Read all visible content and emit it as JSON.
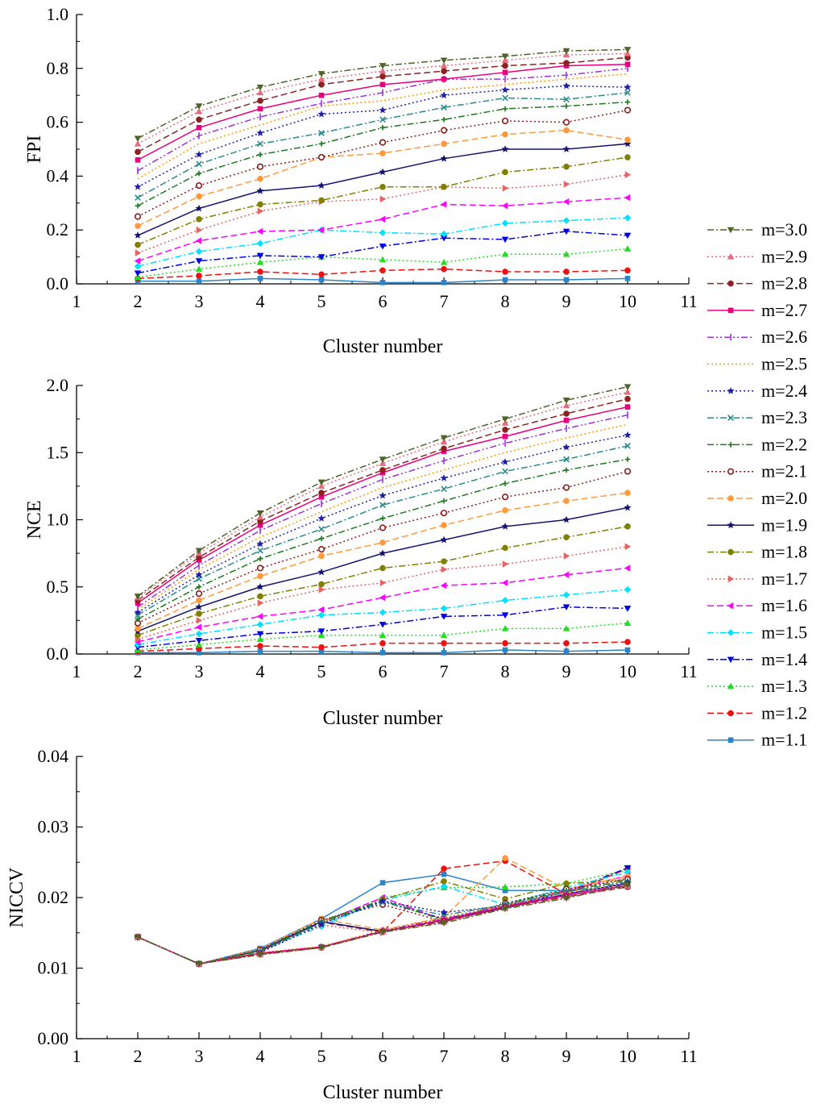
{
  "chart_data": [
    {
      "type": "line",
      "xlabel": "Cluster number",
      "ylabel": "FPI",
      "xlim": [
        1,
        11
      ],
      "ylim": [
        0.0,
        1.0
      ],
      "xticks": [
        "1",
        "2",
        "3",
        "4",
        "5",
        "6",
        "7",
        "8",
        "9",
        "10",
        "11"
      ],
      "yticks": [
        "0.0",
        "0.2",
        "0.4",
        "0.6",
        "0.8",
        "1.0"
      ],
      "x": [
        2,
        3,
        4,
        5,
        6,
        7,
        8,
        9,
        10
      ],
      "series": [
        {
          "name": "m=3.0",
          "values": [
            0.54,
            0.66,
            0.73,
            0.78,
            0.81,
            0.83,
            0.845,
            0.865,
            0.87
          ]
        },
        {
          "name": "m=2.9",
          "values": [
            0.52,
            0.64,
            0.71,
            0.76,
            0.79,
            0.81,
            0.83,
            0.85,
            0.855
          ]
        },
        {
          "name": "m=2.8",
          "values": [
            0.49,
            0.61,
            0.68,
            0.74,
            0.77,
            0.79,
            0.81,
            0.82,
            0.84
          ]
        },
        {
          "name": "m=2.7",
          "values": [
            0.46,
            0.58,
            0.65,
            0.7,
            0.74,
            0.76,
            0.785,
            0.81,
            0.815
          ]
        },
        {
          "name": "m=2.6",
          "values": [
            0.42,
            0.55,
            0.62,
            0.67,
            0.71,
            0.76,
            0.76,
            0.775,
            0.8
          ]
        },
        {
          "name": "m=2.5",
          "values": [
            0.39,
            0.52,
            0.59,
            0.66,
            0.68,
            0.72,
            0.74,
            0.76,
            0.78
          ]
        },
        {
          "name": "m=2.4",
          "values": [
            0.36,
            0.48,
            0.56,
            0.63,
            0.645,
            0.7,
            0.72,
            0.735,
            0.73
          ]
        },
        {
          "name": "m=2.3",
          "values": [
            0.32,
            0.445,
            0.52,
            0.56,
            0.61,
            0.655,
            0.69,
            0.685,
            0.71
          ]
        },
        {
          "name": "m=2.2",
          "values": [
            0.29,
            0.41,
            0.48,
            0.52,
            0.58,
            0.61,
            0.65,
            0.66,
            0.675
          ]
        },
        {
          "name": "m=2.1",
          "values": [
            0.25,
            0.365,
            0.435,
            0.47,
            0.525,
            0.57,
            0.605,
            0.6,
            0.645
          ]
        },
        {
          "name": "m=2.0",
          "values": [
            0.215,
            0.325,
            0.39,
            0.47,
            0.485,
            0.52,
            0.555,
            0.57,
            0.535
          ]
        },
        {
          "name": "m=1.9",
          "values": [
            0.18,
            0.28,
            0.345,
            0.365,
            0.415,
            0.465,
            0.5,
            0.5,
            0.52
          ]
        },
        {
          "name": "m=1.8",
          "values": [
            0.145,
            0.24,
            0.295,
            0.31,
            0.36,
            0.36,
            0.415,
            0.435,
            0.47
          ]
        },
        {
          "name": "m=1.7",
          "values": [
            0.115,
            0.2,
            0.27,
            0.305,
            0.315,
            0.36,
            0.355,
            0.37,
            0.405
          ]
        },
        {
          "name": "m=1.6",
          "values": [
            0.085,
            0.16,
            0.195,
            0.2,
            0.24,
            0.295,
            0.29,
            0.305,
            0.32
          ]
        },
        {
          "name": "m=1.5",
          "values": [
            0.065,
            0.12,
            0.15,
            0.2,
            0.19,
            0.185,
            0.225,
            0.235,
            0.245
          ]
        },
        {
          "name": "m=1.4",
          "values": [
            0.04,
            0.085,
            0.105,
            0.1,
            0.14,
            0.17,
            0.165,
            0.195,
            0.18
          ]
        },
        {
          "name": "m=1.3",
          "values": [
            0.025,
            0.055,
            0.08,
            0.1,
            0.09,
            0.08,
            0.11,
            0.11,
            0.13
          ]
        },
        {
          "name": "m=1.2",
          "values": [
            0.02,
            0.03,
            0.045,
            0.035,
            0.05,
            0.055,
            0.045,
            0.045,
            0.05
          ]
        },
        {
          "name": "m=1.1",
          "values": [
            0.01,
            0.01,
            0.02,
            0.015,
            0.005,
            0.005,
            0.015,
            0.015,
            0.02
          ]
        }
      ]
    },
    {
      "type": "line",
      "xlabel": "Cluster number",
      "ylabel": "NCE",
      "xlim": [
        1,
        11
      ],
      "ylim": [
        0.0,
        2.0
      ],
      "xticks": [
        "1",
        "2",
        "3",
        "4",
        "5",
        "6",
        "7",
        "8",
        "9",
        "10",
        "11"
      ],
      "yticks": [
        "0.0",
        "0.5",
        "1.0",
        "1.5",
        "2.0"
      ],
      "x": [
        2,
        3,
        4,
        5,
        6,
        7,
        8,
        9,
        10
      ],
      "series": [
        {
          "name": "m=3.0",
          "values": [
            0.43,
            0.77,
            1.05,
            1.28,
            1.45,
            1.61,
            1.75,
            1.89,
            1.99
          ]
        },
        {
          "name": "m=2.9",
          "values": [
            0.42,
            0.75,
            1.02,
            1.25,
            1.42,
            1.58,
            1.72,
            1.85,
            1.95
          ]
        },
        {
          "name": "m=2.8",
          "values": [
            0.4,
            0.72,
            0.99,
            1.2,
            1.37,
            1.53,
            1.67,
            1.79,
            1.9
          ]
        },
        {
          "name": "m=2.7",
          "values": [
            0.38,
            0.7,
            0.96,
            1.17,
            1.35,
            1.51,
            1.62,
            1.74,
            1.84
          ]
        },
        {
          "name": "m=2.6",
          "values": [
            0.35,
            0.66,
            0.92,
            1.12,
            1.3,
            1.44,
            1.57,
            1.68,
            1.78
          ]
        },
        {
          "name": "m=2.5",
          "values": [
            0.33,
            0.63,
            0.87,
            1.06,
            1.24,
            1.37,
            1.5,
            1.61,
            1.71
          ]
        },
        {
          "name": "m=2.4",
          "values": [
            0.31,
            0.59,
            0.82,
            1.01,
            1.18,
            1.31,
            1.43,
            1.54,
            1.63
          ]
        },
        {
          "name": "m=2.3",
          "values": [
            0.29,
            0.56,
            0.77,
            0.93,
            1.11,
            1.23,
            1.36,
            1.45,
            1.55
          ]
        },
        {
          "name": "m=2.2",
          "values": [
            0.26,
            0.5,
            0.71,
            0.86,
            1.01,
            1.14,
            1.27,
            1.37,
            1.45
          ]
        },
        {
          "name": "m=2.1",
          "values": [
            0.23,
            0.45,
            0.64,
            0.78,
            0.94,
            1.05,
            1.17,
            1.24,
            1.36
          ]
        },
        {
          "name": "m=2.0",
          "values": [
            0.19,
            0.4,
            0.58,
            0.73,
            0.83,
            0.96,
            1.07,
            1.14,
            1.2
          ]
        },
        {
          "name": "m=1.9",
          "values": [
            0.17,
            0.35,
            0.5,
            0.61,
            0.75,
            0.85,
            0.95,
            1.0,
            1.09
          ]
        },
        {
          "name": "m=1.8",
          "values": [
            0.14,
            0.3,
            0.43,
            0.52,
            0.64,
            0.69,
            0.79,
            0.87,
            0.95
          ]
        },
        {
          "name": "m=1.7",
          "values": [
            0.11,
            0.25,
            0.38,
            0.48,
            0.53,
            0.63,
            0.67,
            0.73,
            0.8
          ]
        },
        {
          "name": "m=1.6",
          "values": [
            0.09,
            0.2,
            0.28,
            0.33,
            0.42,
            0.51,
            0.53,
            0.59,
            0.64
          ]
        },
        {
          "name": "m=1.5",
          "values": [
            0.07,
            0.15,
            0.22,
            0.29,
            0.31,
            0.34,
            0.4,
            0.44,
            0.48
          ]
        },
        {
          "name": "m=1.4",
          "values": [
            0.05,
            0.1,
            0.15,
            0.17,
            0.22,
            0.28,
            0.29,
            0.35,
            0.34
          ]
        },
        {
          "name": "m=1.3",
          "values": [
            0.03,
            0.07,
            0.11,
            0.14,
            0.14,
            0.14,
            0.19,
            0.19,
            0.23
          ]
        },
        {
          "name": "m=1.2",
          "values": [
            0.02,
            0.04,
            0.06,
            0.05,
            0.08,
            0.08,
            0.08,
            0.08,
            0.09
          ]
        },
        {
          "name": "m=1.1",
          "values": [
            0.01,
            0.01,
            0.02,
            0.02,
            0.01,
            0.01,
            0.03,
            0.02,
            0.03
          ]
        }
      ]
    },
    {
      "type": "line",
      "xlabel": "Cluster number",
      "ylabel": "NICCV",
      "xlim": [
        1,
        11
      ],
      "ylim": [
        0.0,
        0.04
      ],
      "xticks": [
        "1",
        "2",
        "3",
        "4",
        "5",
        "6",
        "7",
        "8",
        "9",
        "10",
        "11"
      ],
      "yticks": [
        "0.00",
        "0.01",
        "0.02",
        "0.03",
        "0.04"
      ],
      "x": [
        2,
        3,
        4,
        5,
        6,
        7,
        8,
        9,
        10
      ],
      "series": [
        {
          "name": "m=3.0",
          "values": [
            0.0144,
            0.0106,
            0.0119,
            0.0129,
            0.0151,
            0.0164,
            0.0184,
            0.0199,
            0.0218
          ]
        },
        {
          "name": "m=2.9",
          "values": [
            0.0144,
            0.0106,
            0.0119,
            0.0129,
            0.0151,
            0.0165,
            0.0185,
            0.02,
            0.0216
          ]
        },
        {
          "name": "m=2.8",
          "values": [
            0.0144,
            0.0106,
            0.012,
            0.0129,
            0.0152,
            0.0166,
            0.0186,
            0.0201,
            0.0215
          ]
        },
        {
          "name": "m=2.7",
          "values": [
            0.0144,
            0.0106,
            0.0121,
            0.013,
            0.0152,
            0.0168,
            0.0187,
            0.0203,
            0.0217
          ]
        },
        {
          "name": "m=2.6",
          "values": [
            0.0144,
            0.0106,
            0.0121,
            0.013,
            0.0153,
            0.017,
            0.0188,
            0.0205,
            0.0218
          ]
        },
        {
          "name": "m=2.5",
          "values": [
            0.0144,
            0.0106,
            0.0122,
            0.0131,
            0.0154,
            0.0172,
            0.0189,
            0.0207,
            0.0219
          ]
        },
        {
          "name": "m=2.4",
          "values": [
            0.0144,
            0.0106,
            0.0122,
            0.0162,
            0.0195,
            0.0179,
            0.0188,
            0.0205,
            0.0221
          ]
        },
        {
          "name": "m=2.3",
          "values": [
            0.0144,
            0.0106,
            0.0123,
            0.0164,
            0.0193,
            0.0175,
            0.019,
            0.0208,
            0.0222
          ]
        },
        {
          "name": "m=2.2",
          "values": [
            0.0144,
            0.0106,
            0.0125,
            0.0167,
            0.0196,
            0.0168,
            0.0191,
            0.021,
            0.0224
          ]
        },
        {
          "name": "m=2.1",
          "values": [
            0.0144,
            0.0106,
            0.0126,
            0.0168,
            0.019,
            0.0166,
            0.0192,
            0.0212,
            0.0226
          ]
        },
        {
          "name": "m=2.0",
          "values": [
            0.0144,
            0.0106,
            0.0127,
            0.017,
            0.0154,
            0.0172,
            0.0256,
            0.0212,
            0.023
          ]
        },
        {
          "name": "m=1.9",
          "values": [
            0.0144,
            0.0106,
            0.0125,
            0.0166,
            0.0152,
            0.0168,
            0.0185,
            0.0205,
            0.022
          ]
        },
        {
          "name": "m=1.8",
          "values": [
            0.0144,
            0.0106,
            0.0124,
            0.0165,
            0.0197,
            0.0223,
            0.0198,
            0.022,
            0.0225
          ]
        },
        {
          "name": "m=1.7",
          "values": [
            0.0144,
            0.0106,
            0.0124,
            0.0161,
            0.015,
            0.017,
            0.0189,
            0.0208,
            0.0228
          ]
        },
        {
          "name": "m=1.6",
          "values": [
            0.0144,
            0.0106,
            0.0125,
            0.0165,
            0.02,
            0.0168,
            0.0188,
            0.021,
            0.0231
          ]
        },
        {
          "name": "m=1.5",
          "values": [
            0.0144,
            0.0106,
            0.0126,
            0.0159,
            0.0196,
            0.0216,
            0.019,
            0.0214,
            0.0236
          ]
        },
        {
          "name": "m=1.4",
          "values": [
            0.0144,
            0.0106,
            0.0126,
            0.0167,
            0.0194,
            0.017,
            0.0186,
            0.0208,
            0.0242
          ]
        },
        {
          "name": "m=1.3",
          "values": [
            0.0144,
            0.0106,
            0.0127,
            0.0164,
            0.02,
            0.0214,
            0.0215,
            0.022,
            0.0239
          ]
        },
        {
          "name": "m=1.2",
          "values": [
            0.0144,
            0.0106,
            0.0124,
            0.0165,
            0.0151,
            0.0241,
            0.0252,
            0.0205,
            0.0241
          ]
        },
        {
          "name": "m=1.1",
          "values": [
            0.0144,
            0.0106,
            0.0128,
            0.017,
            0.0221,
            0.0233,
            0.021,
            0.021,
            0.0215
          ]
        }
      ]
    }
  ],
  "series_styles": [
    {
      "name": "m=3.0",
      "color": "#4f6228",
      "dash": "dashdot",
      "marker": "triangle-down"
    },
    {
      "name": "m=2.9",
      "color": "#e46c7e",
      "dash": "dot",
      "marker": "triangle-up"
    },
    {
      "name": "m=2.8",
      "color": "#8b2323",
      "dash": "dash",
      "marker": "circle"
    },
    {
      "name": "m=2.7",
      "color": "#e6007e",
      "dash": "solid",
      "marker": "square"
    },
    {
      "name": "m=2.6",
      "color": "#9b30d9",
      "dash": "dashdotdot",
      "marker": "vbar"
    },
    {
      "name": "m=2.5",
      "color": "#ff9900",
      "dash": "dot",
      "marker": "none"
    },
    {
      "name": "m=2.4",
      "color": "#1f1fa8",
      "dash": "dot",
      "marker": "star"
    },
    {
      "name": "m=2.3",
      "color": "#2a8a8a",
      "dash": "dashdot",
      "marker": "x"
    },
    {
      "name": "m=2.2",
      "color": "#1e7a1e",
      "dash": "dashdot",
      "marker": "plus"
    },
    {
      "name": "m=2.1",
      "color": "#8b1a1a",
      "dash": "dot",
      "marker": "circle-open"
    },
    {
      "name": "m=2.0",
      "color": "#ff9a3c",
      "dash": "dash",
      "marker": "circle"
    },
    {
      "name": "m=1.9",
      "color": "#14146e",
      "dash": "solid",
      "marker": "star"
    },
    {
      "name": "m=1.8",
      "color": "#808000",
      "dash": "dashdot",
      "marker": "circle"
    },
    {
      "name": "m=1.7",
      "color": "#e06666",
      "dash": "dot",
      "marker": "triangle-right"
    },
    {
      "name": "m=1.6",
      "color": "#ff00ff",
      "dash": "dash",
      "marker": "triangle-left"
    },
    {
      "name": "m=1.5",
      "color": "#00e0ff",
      "dash": "dashdot",
      "marker": "diamond"
    },
    {
      "name": "m=1.4",
      "color": "#0000e0",
      "dash": "dashdot",
      "marker": "triangle-down"
    },
    {
      "name": "m=1.3",
      "color": "#22dd22",
      "dash": "dot",
      "marker": "triangle-up"
    },
    {
      "name": "m=1.2",
      "color": "#ee1111",
      "dash": "dash",
      "marker": "circle"
    },
    {
      "name": "m=1.1",
      "color": "#2b83c8",
      "dash": "solid",
      "marker": "square"
    }
  ]
}
